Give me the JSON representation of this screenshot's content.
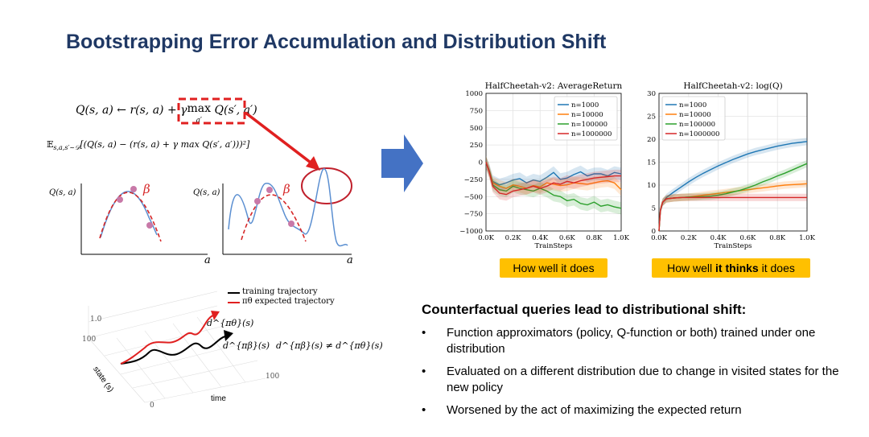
{
  "slide": {
    "title": "Bootstrapping Error Accumulation and Distribution Shift"
  },
  "left": {
    "eq1_lhs": "Q(s, a) ← r(s, a) + γ",
    "eq1_max": "max",
    "eq1_sub": "a′",
    "eq1_rhs": "Q(s′, a′)",
    "eq2": "𝔼",
    "eq2_sub": "s,a,s′~𝒟",
    "eq2_body": "[(Q(s, a) − (r(s, a) + γ max Q(s′, a′)))²]",
    "eq2_sub2": "a′",
    "plot1_ylabel": "Q(s, a)",
    "plot1_beta": "β",
    "plot1_xlabel": "a",
    "plot2_ylabel": "Q(s, a)",
    "plot2_beta": "β",
    "plot2_xlabel": "a",
    "traj_legend_black": "training trajectory",
    "traj_legend_red": "πθ expected trajectory",
    "traj_label_red": "d^{πθ}(s)",
    "traj_label_black": "d^{πβ}(s)",
    "traj_ineq": "d^{πβ}(s) ≠ d^{πθ}(s)",
    "traj_axis_state": "state (s)",
    "traj_axis_time": "time"
  },
  "chart_data": [
    {
      "type": "line",
      "title": "HalfCheetah-v2: AverageReturn",
      "xlabel": "TrainSteps",
      "ylabel": "",
      "x_ticks": [
        "0.0K",
        "0.2K",
        "0.4K",
        "0.6K",
        "0.8K",
        "1.0K"
      ],
      "y_ticks": [
        "1000",
        "750",
        "500",
        "250",
        "0",
        "−250",
        "−500",
        "−750",
        "−1000"
      ],
      "xlim": [
        0,
        1000
      ],
      "ylim": [
        -1000,
        1000
      ],
      "grid": true,
      "legend": "top-right",
      "x": [
        0,
        25,
        50,
        100,
        150,
        200,
        250,
        300,
        350,
        400,
        450,
        500,
        550,
        600,
        650,
        700,
        750,
        800,
        850,
        900,
        950,
        1000
      ],
      "series": [
        {
          "name": "n=1000",
          "color": "#1f77b4",
          "values": [
            0,
            -120,
            -280,
            -330,
            -300,
            -260,
            -240,
            -300,
            -260,
            -280,
            -220,
            -150,
            -250,
            -230,
            -180,
            -140,
            -200,
            -170,
            -170,
            -200,
            -150,
            -170
          ]
        },
        {
          "name": "n=10000",
          "color": "#ff7f0e",
          "values": [
            0,
            -130,
            -300,
            -350,
            -380,
            -330,
            -350,
            -380,
            -340,
            -360,
            -300,
            -320,
            -340,
            -330,
            -300,
            -310,
            -320,
            -300,
            -280,
            -270,
            -300,
            -400
          ]
        },
        {
          "name": "n=100000",
          "color": "#2ca02c",
          "values": [
            0,
            -140,
            -330,
            -400,
            -420,
            -350,
            -380,
            -400,
            -420,
            -380,
            -420,
            -480,
            -500,
            -560,
            -540,
            -600,
            -620,
            -580,
            -640,
            -620,
            -650,
            -670
          ]
        },
        {
          "name": "n=1000000",
          "color": "#d62728",
          "values": [
            0,
            -150,
            -350,
            -450,
            -470,
            -420,
            -400,
            -380,
            -350,
            -380,
            -350,
            -300,
            -320,
            -280,
            -300,
            -270,
            -250,
            -230,
            -220,
            -210,
            -200,
            -200
          ]
        }
      ],
      "badge": "How well it does"
    },
    {
      "type": "line",
      "title": "HalfCheetah-v2: log(Q)",
      "xlabel": "TrainSteps",
      "ylabel": "",
      "x_ticks": [
        "0.0K",
        "0.2K",
        "0.4K",
        "0.6K",
        "0.8K",
        "1.0K"
      ],
      "y_ticks": [
        "30",
        "25",
        "20",
        "15",
        "10",
        "5",
        "0"
      ],
      "xlim": [
        0,
        1000
      ],
      "ylim": [
        0,
        30
      ],
      "grid": true,
      "legend": "top-left",
      "x": [
        0,
        10,
        25,
        50,
        100,
        150,
        200,
        250,
        300,
        350,
        400,
        450,
        500,
        550,
        600,
        650,
        700,
        750,
        800,
        850,
        900,
        950,
        1000
      ],
      "series": [
        {
          "name": "n=1000",
          "color": "#1f77b4",
          "values": [
            0,
            4.5,
            6.2,
            7.3,
            8.5,
            9.6,
            10.7,
            11.7,
            12.6,
            13.4,
            14.2,
            14.9,
            15.6,
            16.2,
            16.8,
            17.3,
            17.7,
            18.1,
            18.5,
            18.8,
            19.1,
            19.3,
            19.5
          ]
        },
        {
          "name": "n=10000",
          "color": "#ff7f0e",
          "values": [
            0,
            4.6,
            6.3,
            7.0,
            7.2,
            7.3,
            7.4,
            7.6,
            7.8,
            8.0,
            8.2,
            8.4,
            8.6,
            8.8,
            9.0,
            9.2,
            9.4,
            9.6,
            9.8,
            10.0,
            10.1,
            10.2,
            10.3
          ]
        },
        {
          "name": "n=100000",
          "color": "#2ca02c",
          "values": [
            0,
            4.6,
            6.3,
            7.0,
            7.2,
            7.3,
            7.4,
            7.4,
            7.5,
            7.6,
            7.8,
            8.1,
            8.5,
            8.9,
            9.4,
            10.0,
            10.7,
            11.3,
            12.0,
            12.6,
            13.3,
            14.0,
            14.7
          ]
        },
        {
          "name": "n=1000000",
          "color": "#d62728",
          "values": [
            0,
            4.6,
            6.3,
            7.0,
            7.2,
            7.3,
            7.3,
            7.3,
            7.3,
            7.3,
            7.3,
            7.3,
            7.3,
            7.3,
            7.3,
            7.3,
            7.3,
            7.3,
            7.3,
            7.3,
            7.3,
            7.3,
            7.3
          ]
        }
      ],
      "badge_pre": "How well ",
      "badge_bold": "it thinks",
      "badge_post": " it does"
    }
  ],
  "right": {
    "heading": "Counterfactual queries lead to distributional shift:",
    "bullet_char": "•",
    "bullets": [
      "Function approximators (policy, Q-function or both) trained under one distribution",
      "Evaluated on a different distribution due to change in visited states for the new policy",
      "Worsened by the act of maximizing the expected return"
    ]
  },
  "colors": {
    "title": "#1f3864",
    "arrow_blue": "#4472c4",
    "highlight_red": "#e02020",
    "badge": "#ffc000"
  }
}
